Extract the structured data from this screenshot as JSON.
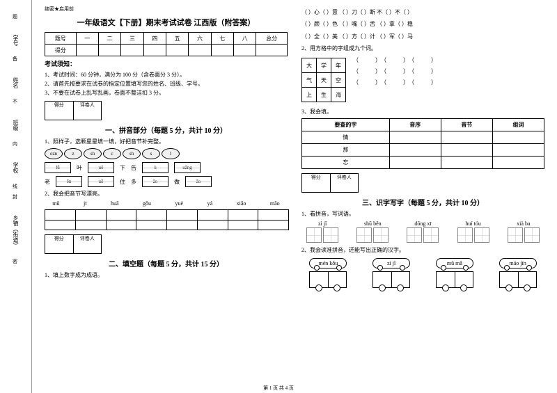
{
  "binding": {
    "labels": [
      "学号",
      "姓名",
      "班级",
      "学校",
      "乡镇（街道）"
    ],
    "cut_chars": [
      "题",
      "备",
      "不",
      "内",
      "线",
      "封",
      "密"
    ]
  },
  "confidential": "绝密★启用前",
  "title": "一年级语文【下册】期末考试试卷 江西版（附答案）",
  "score_header": {
    "id": "题号",
    "cols": [
      "一",
      "二",
      "三",
      "四",
      "五",
      "六",
      "七",
      "八",
      "总分"
    ],
    "score": "得分"
  },
  "notice_head": "考试须知：",
  "notices": [
    "1、考试时间：60 分钟，满分为 100 分（含卷面分 3 分）。",
    "2、请首先按要求在试卷的指定位置填写您的姓名、班级、学号。",
    "3、不要在试卷上乱写乱画，卷面不整洁扣 3 分。"
  ],
  "scorer": {
    "a": "得分",
    "b": "评卷人"
  },
  "sec1": {
    "title": "一、拼音部分（每题 5 分，共计 10 分）",
    "q1": "1、照样子，选颗星星填一填，好把音节补完整。",
    "ovals": [
      "ozn",
      "z",
      "sh",
      "c",
      "sh",
      "s",
      "l"
    ],
    "row1": [
      {
        "ch": "",
        "py": "lǜ"
      },
      {
        "ch": "叶",
        "py": ""
      },
      {
        "ch": "",
        "py": "uǒ"
      },
      {
        "ch": "下",
        "py": ""
      },
      {
        "ch": "告",
        "py": ""
      },
      {
        "ch": "",
        "py": "ù"
      },
      {
        "ch": "",
        "py": "uāng"
      }
    ],
    "row2": [
      {
        "ch": "老",
        "py": ""
      },
      {
        "ch": "",
        "py": "ēn"
      },
      {
        "ch": "",
        "py": "uō"
      },
      {
        "ch": "住",
        "py": ""
      },
      {
        "ch": "多",
        "py": ""
      },
      {
        "ch": "",
        "py": "ǎo"
      },
      {
        "ch": "做",
        "py": ""
      },
      {
        "ch": "",
        "py": "ǎo"
      }
    ],
    "q2": "2、我会把音节写漂亮。",
    "q2_pinyin": [
      "mǔ",
      "jī",
      "huā",
      "gǒu",
      "yuè",
      "yá",
      "xiǎo",
      "māo"
    ]
  },
  "sec2": {
    "title": "二、填空题（每题 5 分，共计 15 分）",
    "q1": "1、填上数字成为成语。",
    "lines": [
      "（  ）心（  ）意    （  ）刀（  ）断    不（  ）不（  ）",
      "（  ）颜（  ）色    （  ）嘴（  ）舌    （  ）拿（  ）稳",
      "（  ）全（  ）美    （  ）方（  ）计    （  ）军（  ）马"
    ],
    "q2": "2、用方格中的字组成九个词。",
    "gridL": [
      [
        "大",
        "学",
        "年"
      ],
      [
        "气",
        "天",
        "空"
      ],
      [
        "上",
        "生",
        "海"
      ]
    ],
    "q3": "3、我会填。",
    "lookup_head": [
      "要查的字",
      "音序",
      "音节",
      "组词"
    ],
    "lookup_rows": [
      "情",
      "那",
      "忘"
    ]
  },
  "sec3": {
    "title": "三、识字写字（每题 5 分，共计 10 分）",
    "q1": "1、看拼音，写词语。",
    "words": [
      [
        "zì",
        "jǐ"
      ],
      [
        "shū",
        "běn"
      ],
      [
        "dōng",
        "xī"
      ],
      [
        "huí",
        "tóu"
      ],
      [
        "xià",
        "ba"
      ]
    ],
    "q2": "2、我会读准拼音，还能写出正确的汉字。",
    "clouds": [
      [
        "mén",
        "kǒu"
      ],
      [
        "zì",
        "jǐ"
      ],
      [
        "mǔ",
        "mǎ"
      ],
      [
        "máo",
        "jīn"
      ]
    ]
  },
  "footer": "第 1 页 共 4 页"
}
